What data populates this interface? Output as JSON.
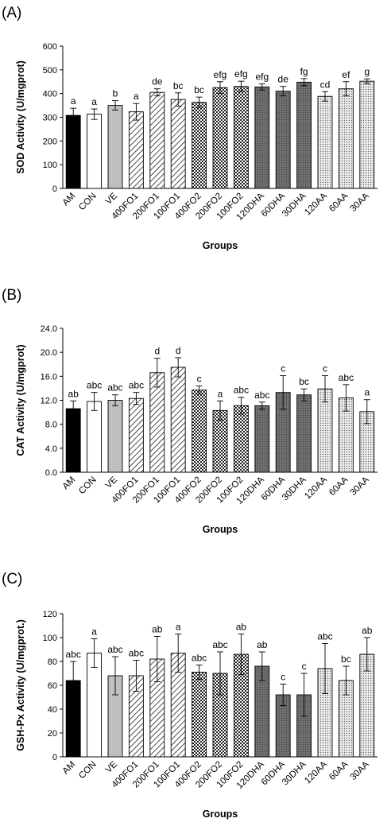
{
  "chart_data": [
    {
      "type": "bar",
      "panel_label": "(A)",
      "ylabel": "SOD Activity (U/mgprot)",
      "xlabel": "Groups",
      "ylim": [
        0,
        600
      ],
      "yticks": [
        "0",
        "100",
        "200",
        "300",
        "400",
        "500",
        "600"
      ],
      "categories": [
        "AM",
        "CON",
        "VE",
        "400FO1",
        "200FO1",
        "100FO1",
        "400FO2",
        "200FO2",
        "100FO2",
        "120DHA",
        "60DHA",
        "30DHA",
        "120AA",
        "60AA",
        "30AA"
      ],
      "values": [
        308,
        313,
        350,
        323,
        405,
        375,
        363,
        425,
        430,
        428,
        410,
        448,
        388,
        420,
        452
      ],
      "errors": [
        30,
        22,
        20,
        35,
        15,
        28,
        22,
        25,
        22,
        13,
        20,
        15,
        20,
        30,
        10
      ],
      "letters": [
        "a",
        "a",
        "b",
        "a",
        "de",
        "bc",
        "bc",
        "efg",
        "efg",
        "efg",
        "de",
        "fg",
        "cd",
        "ef",
        "g"
      ]
    },
    {
      "type": "bar",
      "panel_label": "(B)",
      "ylabel": "CAT Activity (U/mgprot)",
      "xlabel": "Groups",
      "ylim": [
        0,
        24
      ],
      "yticks": [
        "0.0",
        "4.0",
        "8.0",
        "12.0",
        "16.0",
        "20.0",
        "24.0"
      ],
      "categories": [
        "AM",
        "CON",
        "VE",
        "400FO1",
        "200FO1",
        "100FO1",
        "400FO2",
        "200FO2",
        "100FO2",
        "120DHA",
        "60DHA",
        "30DHA",
        "120AA",
        "60AA",
        "30AA"
      ],
      "values": [
        10.6,
        11.8,
        12.0,
        12.3,
        16.6,
        17.5,
        13.7,
        10.3,
        11.1,
        11.1,
        13.3,
        12.9,
        13.9,
        12.4,
        10.1
      ],
      "errors": [
        1.3,
        1.5,
        0.9,
        1.0,
        2.4,
        1.6,
        0.7,
        1.6,
        1.4,
        0.6,
        2.8,
        1.0,
        2.2,
        2.2,
        2.0
      ],
      "letters": [
        "ab",
        "abc",
        "abc",
        "abc",
        "d",
        "d",
        "c",
        "a",
        "abc",
        "abc",
        "c",
        "bc",
        "c",
        "abc",
        "a"
      ]
    },
    {
      "type": "bar",
      "panel_label": "(C)",
      "ylabel": "GSH-Px Activity (U/mgprot.)",
      "xlabel": "Groups",
      "ylim": [
        0,
        120
      ],
      "yticks": [
        "0",
        "20",
        "40",
        "60",
        "80",
        "100",
        "120"
      ],
      "categories": [
        "AM",
        "CON",
        "VE",
        "400FO1",
        "200FO1",
        "100FO1",
        "400FO2",
        "200FO2",
        "100FO2",
        "120DHA",
        "60DHA",
        "30DHA",
        "120AA",
        "60AA",
        "30AA"
      ],
      "values": [
        64,
        87,
        68,
        68,
        82,
        87,
        71,
        70,
        86,
        76,
        52,
        52,
        74,
        64,
        86
      ],
      "errors": [
        16,
        12,
        16,
        13,
        19,
        16,
        6,
        18,
        17,
        12,
        9,
        18,
        21,
        12,
        14
      ],
      "letters": [
        "abc",
        "a",
        "abc",
        "abc",
        "ab",
        "a",
        "abc",
        "abc",
        "ab",
        "ab",
        "c",
        "c",
        "abc",
        "bc",
        "ab"
      ]
    }
  ]
}
